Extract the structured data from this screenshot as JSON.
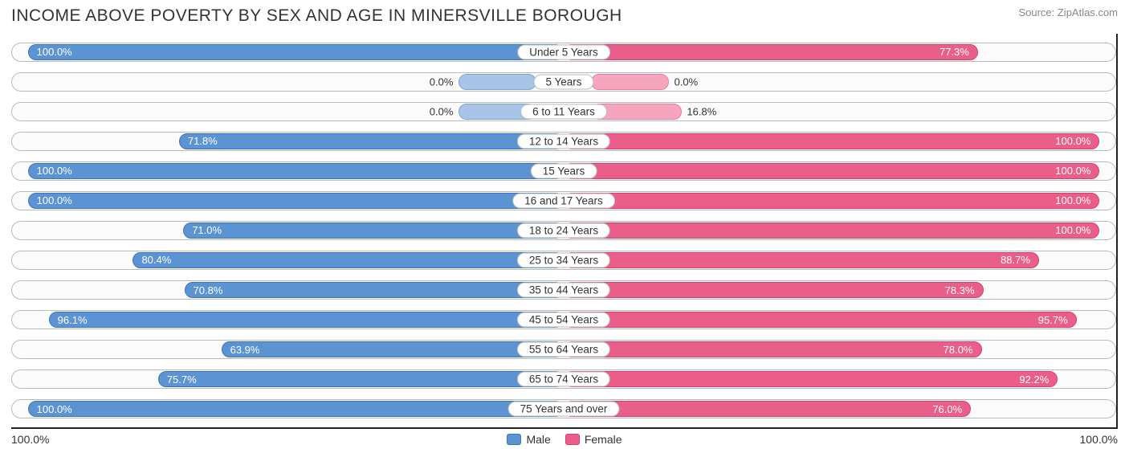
{
  "title": "INCOME ABOVE POVERTY BY SEX AND AGE IN MINERSVILLE BOROUGH",
  "source": "Source: ZipAtlas.com",
  "colors": {
    "male_fill": "#5b93d3",
    "male_border": "#3d76b8",
    "male_light_fill": "#a8c5e8",
    "male_light_border": "#7ba3d4",
    "female_fill": "#ea5f89",
    "female_border": "#d63f6e",
    "female_light_fill": "#f5a6be",
    "female_light_border": "#e97ca0",
    "track_border": "#bbbbbb",
    "text": "#333333"
  },
  "axis": {
    "left": "100.0%",
    "right": "100.0%"
  },
  "legend": {
    "male": "Male",
    "female": "Female"
  },
  "half_width_pct": 48.5,
  "label_gap_pct": 5,
  "zero_bar_pct": 14,
  "rows": [
    {
      "category": "Under 5 Years",
      "male": 100.0,
      "female": 77.3,
      "zero_mode": false
    },
    {
      "category": "5 Years",
      "male": 0.0,
      "female": 0.0,
      "zero_mode": true
    },
    {
      "category": "6 to 11 Years",
      "male": 0.0,
      "female": 16.8,
      "zero_mode": true
    },
    {
      "category": "12 to 14 Years",
      "male": 71.8,
      "female": 100.0,
      "zero_mode": false
    },
    {
      "category": "15 Years",
      "male": 100.0,
      "female": 100.0,
      "zero_mode": false
    },
    {
      "category": "16 and 17 Years",
      "male": 100.0,
      "female": 100.0,
      "zero_mode": false
    },
    {
      "category": "18 to 24 Years",
      "male": 71.0,
      "female": 100.0,
      "zero_mode": false
    },
    {
      "category": "25 to 34 Years",
      "male": 80.4,
      "female": 88.7,
      "zero_mode": false
    },
    {
      "category": "35 to 44 Years",
      "male": 70.8,
      "female": 78.3,
      "zero_mode": false
    },
    {
      "category": "45 to 54 Years",
      "male": 96.1,
      "female": 95.7,
      "zero_mode": false
    },
    {
      "category": "55 to 64 Years",
      "male": 63.9,
      "female": 78.0,
      "zero_mode": false
    },
    {
      "category": "65 to 74 Years",
      "male": 75.7,
      "female": 92.2,
      "zero_mode": false
    },
    {
      "category": "75 Years and over",
      "male": 100.0,
      "female": 76.0,
      "zero_mode": false
    }
  ]
}
